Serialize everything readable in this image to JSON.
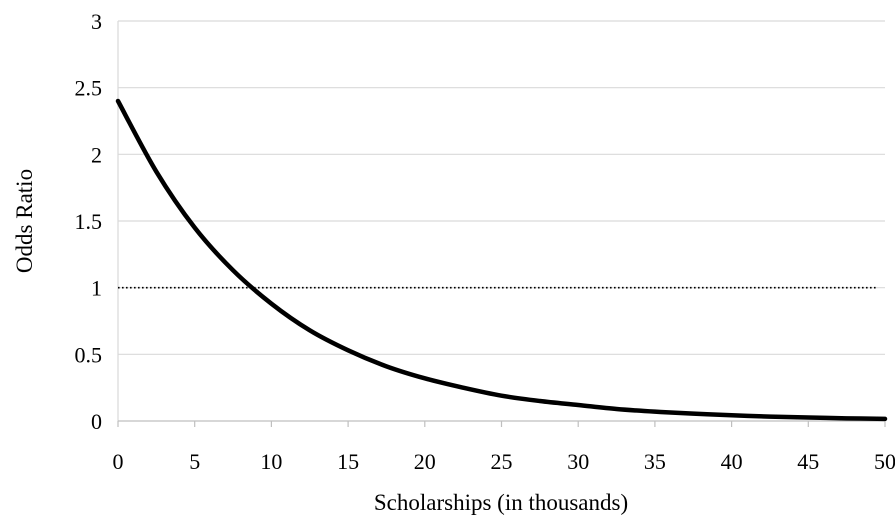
{
  "chart_data": {
    "type": "line",
    "title": "",
    "xlabel": "Scholarships (in thousands)",
    "ylabel": "Odds Ratio",
    "xlim": [
      0,
      50
    ],
    "ylim": [
      0,
      3
    ],
    "x_ticks": [
      0,
      5,
      10,
      15,
      20,
      25,
      30,
      35,
      40,
      45,
      50
    ],
    "x_tick_labels": [
      "0",
      "5",
      "10",
      "15",
      "20",
      "25",
      "30",
      "35",
      "40",
      "45",
      "50"
    ],
    "y_ticks": [
      0,
      0.5,
      1,
      1.5,
      2,
      2.5,
      3
    ],
    "y_tick_labels": [
      "0",
      "0.5",
      "1",
      "1.5",
      "2",
      "2.5",
      "3"
    ],
    "grid": "horizontal",
    "legend": "none",
    "series": [
      {
        "x": [
          0,
          2.5,
          5,
          7.5,
          10,
          12.5,
          15,
          17.5,
          20,
          22.5,
          25,
          27.5,
          30,
          32.5,
          35,
          37.5,
          40,
          42.5,
          45,
          47.5,
          50
        ],
        "values": [
          2.4,
          1.87,
          1.45,
          1.13,
          0.88,
          0.68,
          0.53,
          0.41,
          0.32,
          0.25,
          0.19,
          0.15,
          0.12,
          0.09,
          0.07,
          0.055,
          0.043,
          0.033,
          0.026,
          0.02,
          0.016
        ],
        "color": "#000000",
        "style": "solid"
      }
    ],
    "reference_line": {
      "y": 1,
      "style": "dotted",
      "color": "#000000"
    }
  }
}
